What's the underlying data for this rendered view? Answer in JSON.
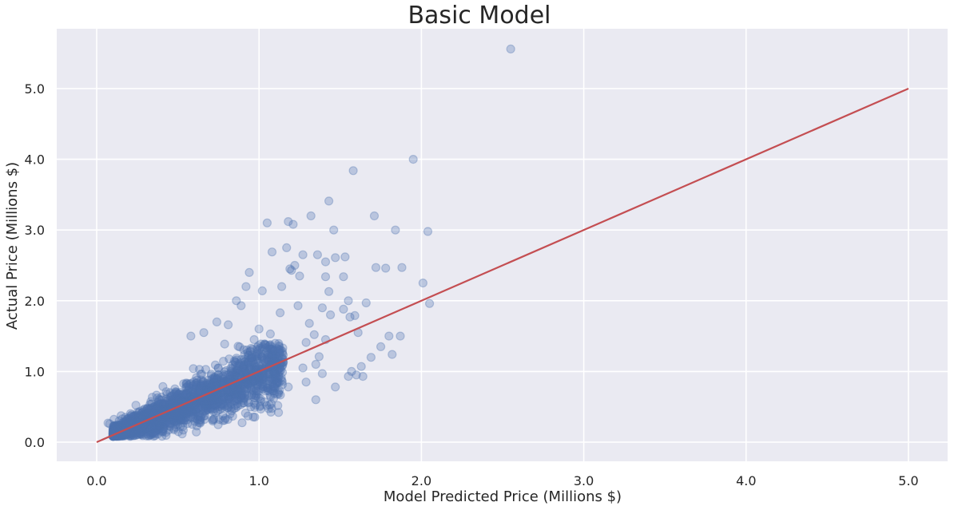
{
  "chart_data": {
    "type": "scatter",
    "title": "Basic Model",
    "xlabel": "Model Predicted Price (Millions $)",
    "ylabel": "Actual Price (Millions $)",
    "xlim": [
      -0.25,
      5.2
    ],
    "ylim": [
      -0.27,
      5.85
    ],
    "xticks": [
      0.0,
      1.0,
      2.0,
      3.0,
      4.0,
      5.0
    ],
    "yticks": [
      0.0,
      1.0,
      2.0,
      3.0,
      4.0,
      5.0
    ],
    "xtick_labels": [
      "0.0",
      "1.0",
      "2.0",
      "3.0",
      "4.0",
      "5.0"
    ],
    "ytick_labels": [
      "0.0",
      "1.0",
      "2.0",
      "3.0",
      "4.0",
      "5.0"
    ],
    "grid": true,
    "point_color": "#4c72b0",
    "line_color": "#c44e52",
    "background_color": "#eaeaf2",
    "reference_line": {
      "x": [
        0.0,
        5.0
      ],
      "y": [
        0.0,
        5.0
      ]
    },
    "outliers": {
      "x": [
        2.55,
        1.95,
        1.58,
        1.43,
        1.05,
        1.18,
        1.32,
        1.46,
        1.21,
        1.71,
        1.84,
        2.04,
        1.36,
        1.47,
        1.53,
        1.41,
        1.72,
        1.78,
        1.88,
        1.17,
        1.19,
        2.01,
        1.52,
        1.55,
        2.05,
        1.87,
        1.52,
        1.61,
        1.24,
        1.39,
        1.44,
        1.56,
        1.66,
        1.59,
        1.34,
        1.29,
        1.41,
        1.75,
        1.8,
        1.82,
        1.27,
        1.35,
        1.39,
        1.47,
        1.6,
        1.64,
        1.55,
        1.57,
        1.63,
        1.69,
        1.35,
        1.29,
        1.18,
        1.09,
        0.94,
        0.92,
        0.86,
        1.02,
        1.08,
        1.14,
        1.22,
        1.27,
        1.41,
        1.2,
        1.25,
        1.13,
        0.89,
        0.81,
        0.74,
        0.66,
        0.58,
        1.31,
        1.43,
        1.07,
        1.0,
        0.97,
        1.12,
        1.37
      ],
      "y": [
        5.56,
        4.0,
        3.84,
        3.41,
        3.1,
        3.12,
        3.2,
        3.0,
        3.08,
        3.2,
        3.0,
        2.98,
        2.65,
        2.61,
        2.62,
        2.55,
        2.47,
        2.46,
        2.47,
        2.75,
        2.45,
        2.25,
        2.34,
        2.0,
        1.96,
        1.5,
        1.88,
        1.55,
        1.93,
        1.9,
        1.8,
        1.77,
        1.97,
        1.79,
        1.52,
        1.41,
        1.45,
        1.35,
        1.5,
        1.24,
        1.05,
        1.1,
        0.97,
        0.78,
        0.95,
        0.93,
        0.93,
        1.0,
        1.07,
        1.2,
        0.6,
        0.85,
        0.78,
        0.62,
        2.4,
        2.2,
        2.0,
        2.14,
        2.69,
        2.2,
        2.5,
        2.65,
        2.34,
        2.43,
        2.35,
        1.83,
        1.93,
        1.66,
        1.7,
        1.55,
        1.5,
        1.68,
        2.13,
        1.53,
        1.6,
        1.45,
        0.42,
        1.21
      ]
    },
    "dense_cluster": {
      "n_points": 2200,
      "x_range": [
        0.1,
        1.15
      ],
      "y_range": [
        0.08,
        1.4
      ],
      "description_slope": 0.95
    }
  }
}
